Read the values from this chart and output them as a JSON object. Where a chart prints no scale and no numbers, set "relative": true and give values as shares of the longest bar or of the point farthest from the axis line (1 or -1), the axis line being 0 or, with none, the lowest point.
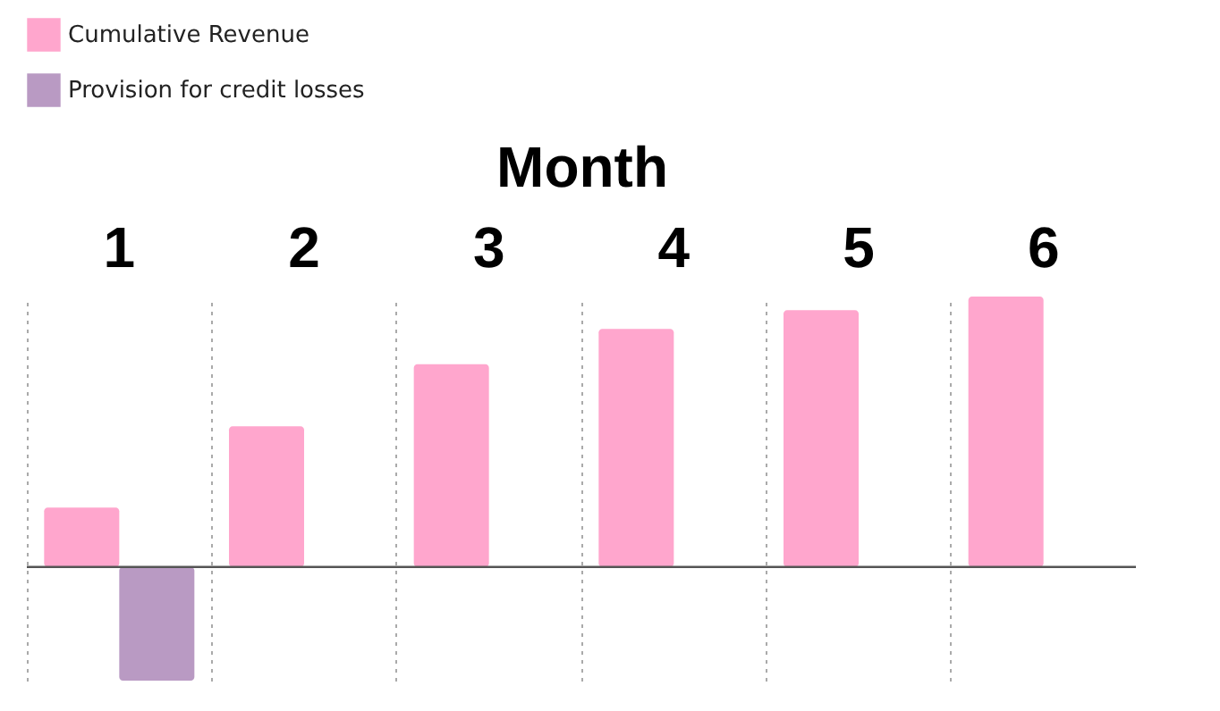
{
  "chart_data": {
    "type": "bar",
    "xlabel": "Month",
    "categories": [
      "1",
      "2",
      "3",
      "4",
      "5",
      "6"
    ],
    "relative": true,
    "grid": "x",
    "legend": "top left",
    "series": [
      {
        "name": "Cumulative Revenue",
        "color": "#ffa6cd",
        "values": [
          0.22,
          0.52,
          0.75,
          0.88,
          0.95,
          1.0
        ]
      },
      {
        "name": "Provision for credit losses",
        "color": "#b99ac3",
        "values": [
          -0.42,
          null,
          null,
          null,
          null,
          null
        ]
      }
    ]
  }
}
